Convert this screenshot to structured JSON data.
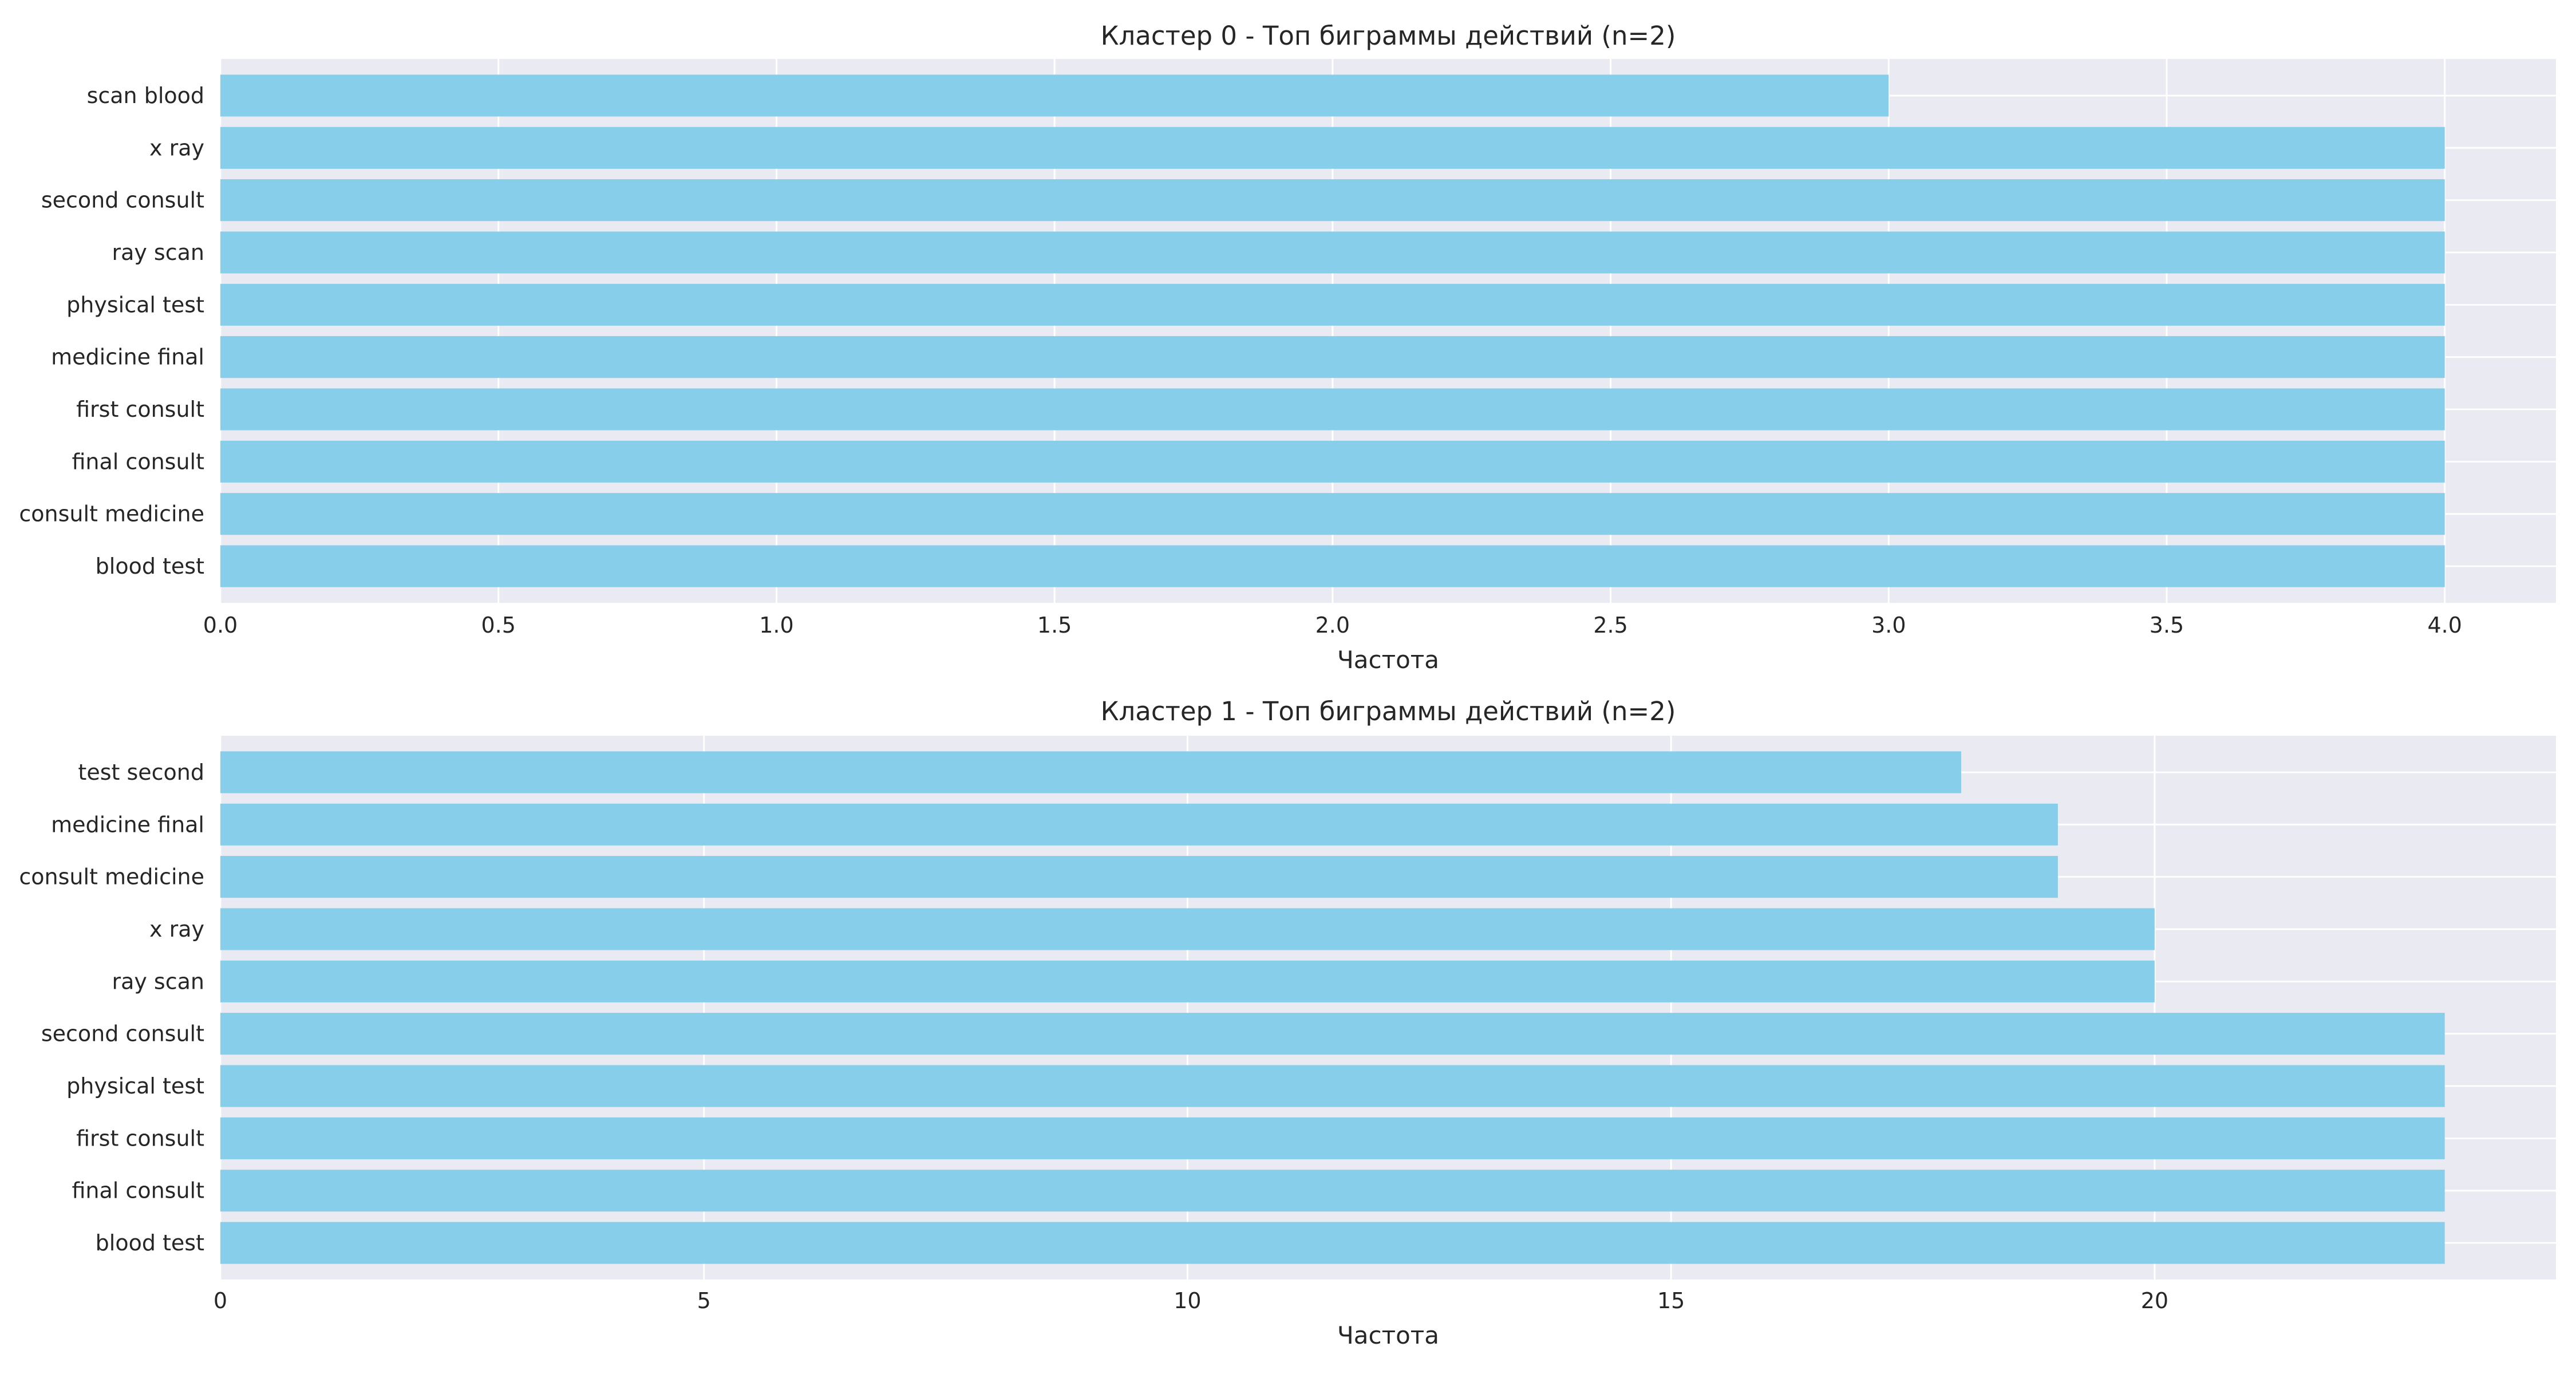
{
  "colors": {
    "bar": "#87CEEB",
    "plot_background": "#EAEAF2",
    "grid": "#FFFFFF",
    "text": "#262626"
  },
  "chart_data": [
    {
      "type": "bar",
      "orientation": "horizontal",
      "title": "Кластер 0 - Топ биграммы действий (n=2)",
      "xlabel": "Частота",
      "ylabel": "",
      "categories": [
        "blood test",
        "consult medicine",
        "final consult",
        "first consult",
        "medicine final",
        "physical test",
        "ray scan",
        "second consult",
        "x ray",
        "scan blood"
      ],
      "values": [
        4,
        4,
        4,
        4,
        4,
        4,
        4,
        4,
        4,
        3
      ],
      "xlim": [
        0,
        4.2
      ],
      "xticks": [
        0.0,
        0.5,
        1.0,
        1.5,
        2.0,
        2.5,
        3.0,
        3.5,
        4.0
      ],
      "xtick_labels": [
        "0.0",
        "0.5",
        "1.0",
        "1.5",
        "2.0",
        "2.5",
        "3.0",
        "3.5",
        "4.0"
      ],
      "grid": true,
      "legend": "none"
    },
    {
      "type": "bar",
      "orientation": "horizontal",
      "title": "Кластер 1 - Топ биграммы действий (n=2)",
      "xlabel": "Частота",
      "ylabel": "",
      "categories": [
        "blood test",
        "final consult",
        "first consult",
        "physical test",
        "second consult",
        "ray scan",
        "x ray",
        "consult medicine",
        "medicine final",
        "test second"
      ],
      "values": [
        23,
        23,
        23,
        23,
        23,
        20,
        20,
        19,
        19,
        18
      ],
      "xlim": [
        0,
        24.15
      ],
      "xticks": [
        0,
        5,
        10,
        15,
        20
      ],
      "xtick_labels": [
        "0",
        "5",
        "10",
        "15",
        "20"
      ],
      "grid": true,
      "legend": "none"
    }
  ]
}
